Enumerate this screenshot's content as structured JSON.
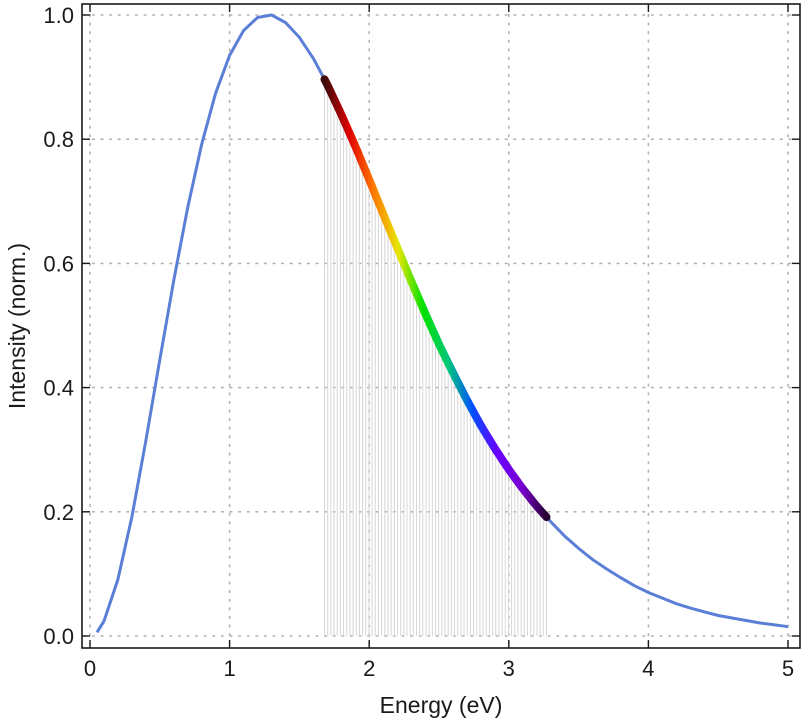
{
  "chart_data": {
    "type": "line",
    "xlabel": "Energy (eV)",
    "ylabel": "Intensity (norm.)",
    "xlim": [
      0,
      5
    ],
    "ylim": [
      0,
      1.0
    ],
    "x_ticks": [
      "0",
      "1",
      "2",
      "3",
      "4",
      "5"
    ],
    "y_ticks": [
      "0.0",
      "0.2",
      "0.4",
      "0.6",
      "0.8",
      "1.0"
    ],
    "grid": true,
    "legend": "none",
    "curve_color": "#5b7fd6",
    "visible_band": {
      "x_range": [
        1.68,
        3.27
      ],
      "shaded": true,
      "gradient_colors": [
        "#3a0a0a",
        "#e00000",
        "#ff7a00",
        "#e6e600",
        "#00e000",
        "#00c878",
        "#0050ff",
        "#6a00ff",
        "#7a00d0",
        "#250030"
      ]
    },
    "series": [
      {
        "x": [
          0.05,
          0.1,
          0.2,
          0.3,
          0.4,
          0.5,
          0.6,
          0.7,
          0.8,
          0.9,
          1.0,
          1.1,
          1.2,
          1.3,
          1.4,
          1.5,
          1.6,
          1.7,
          1.8,
          1.9,
          2.0,
          2.1,
          2.2,
          2.3,
          2.4,
          2.5,
          2.6,
          2.7,
          2.8,
          2.9,
          3.0,
          3.1,
          3.2,
          3.3,
          3.4,
          3.5,
          3.6,
          3.7,
          3.8,
          3.9,
          4.0,
          4.1,
          4.2,
          4.3,
          4.4,
          4.5,
          4.6,
          4.7,
          4.8,
          4.9,
          5.0
        ],
        "values": [
          0.006,
          0.024,
          0.091,
          0.192,
          0.314,
          0.445,
          0.573,
          0.69,
          0.792,
          0.874,
          0.935,
          0.975,
          0.996,
          1.0,
          0.988,
          0.964,
          0.93,
          0.888,
          0.84,
          0.789,
          0.735,
          0.68,
          0.626,
          0.572,
          0.52,
          0.47,
          0.424,
          0.38,
          0.339,
          0.302,
          0.268,
          0.237,
          0.209,
          0.184,
          0.161,
          0.141,
          0.123,
          0.108,
          0.094,
          0.081,
          0.07,
          0.061,
          0.052,
          0.045,
          0.039,
          0.033,
          0.029,
          0.025,
          0.021,
          0.018,
          0.015
        ]
      }
    ]
  }
}
